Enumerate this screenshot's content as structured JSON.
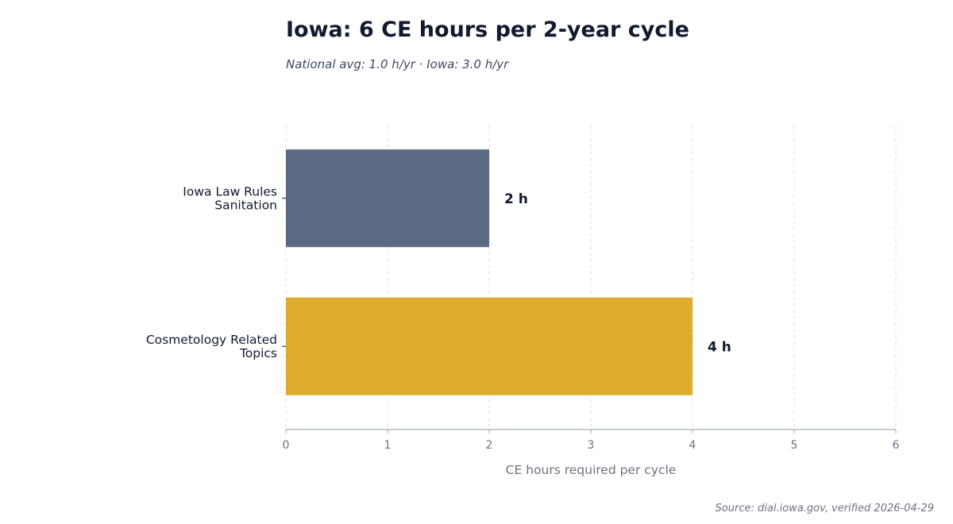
{
  "chart_data": {
    "type": "bar",
    "orientation": "horizontal",
    "title": "Iowa: 6 CE hours per 2-year cycle",
    "subtitle": "National avg: 1.0 h/yr · Iowa: 3.0 h/yr",
    "categories": [
      [
        "Iowa Law Rules",
        "Sanitation"
      ],
      [
        "Cosmetology Related",
        "Topics"
      ]
    ],
    "values": [
      2,
      4
    ],
    "data_labels": [
      "2 h",
      "4 h"
    ],
    "colors": [
      "#5b6a84",
      "#dfab2c"
    ],
    "xlabel": "CE hours required per cycle",
    "ylabel": "",
    "xlim": [
      0,
      6
    ],
    "xticks": [
      0,
      1,
      2,
      3,
      4,
      5,
      6
    ],
    "grid": "vertical-dashed",
    "legend": "none"
  },
  "source": "Source: dial.iowa.gov, verified 2026-04-29"
}
